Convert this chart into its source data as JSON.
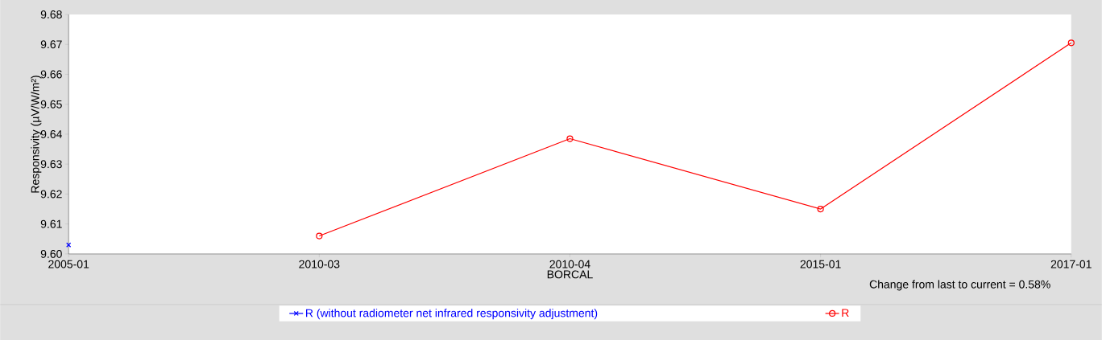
{
  "chart_data": {
    "type": "line",
    "xlabel": "BORCAL",
    "ylabel": "Responsivity (µV/W/m²)",
    "categories": [
      "2005-01",
      "2010-03",
      "2010-04",
      "2015-01",
      "2017-01"
    ],
    "series": [
      {
        "name": "R (without radiometer net infrared responsivity adjustment)",
        "color": "#0000ff",
        "marker": "cross",
        "values": [
          9.603,
          null,
          null,
          null,
          null
        ]
      },
      {
        "name": "R",
        "color": "#ff0000",
        "marker": "circle",
        "values": [
          null,
          9.606,
          9.6385,
          9.615,
          9.6705
        ]
      }
    ],
    "ylim": [
      9.6,
      9.68
    ],
    "yticks": [
      {
        "value": 9.6,
        "label": "9.60"
      },
      {
        "value": 9.61,
        "label": "9.61"
      },
      {
        "value": 9.62,
        "label": "9.62"
      },
      {
        "value": 9.63,
        "label": "9.63"
      },
      {
        "value": 9.64,
        "label": "9.64"
      },
      {
        "value": 9.65,
        "label": "9.65"
      },
      {
        "value": 9.66,
        "label": "9.66"
      },
      {
        "value": 9.67,
        "label": "9.67"
      },
      {
        "value": 9.68,
        "label": "9.68"
      }
    ],
    "legend": "bottom",
    "annotations": [
      "Change from last to current = 0.58%"
    ]
  }
}
